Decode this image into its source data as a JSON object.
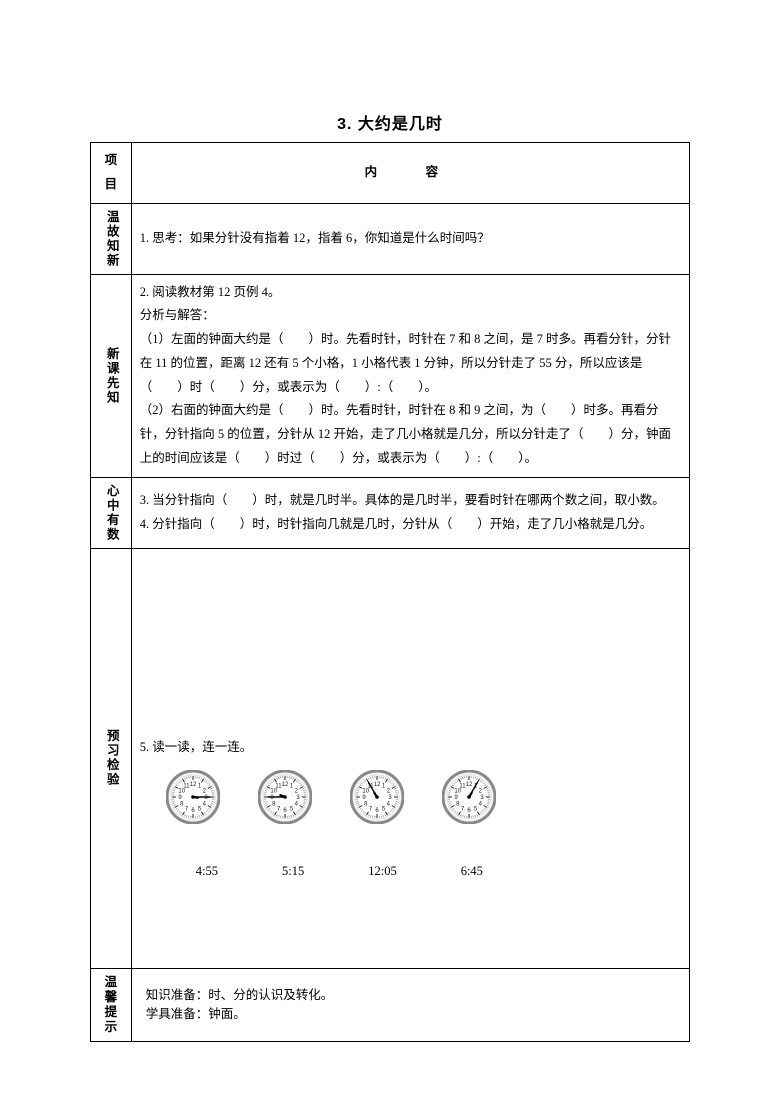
{
  "title": "3. 大约是几时",
  "header": {
    "col1": "项目",
    "col2": "内　容"
  },
  "rows": {
    "r1": {
      "label": "温故知新",
      "text": "1. 思考：如果分针没有指着 12，指着 6，你知道是什么时间吗？"
    },
    "r2": {
      "label": "新课先知",
      "l1": "2. 阅读教材第 12 页例 4。",
      "l2": "分析与解答：",
      "l3": "（1）左面的钟面大约是（　　）时。先看时针，时针在 7 和 8 之间，是 7 时多。再看分针，分针在 11 的位置，距离 12 还有 5 个小格，1 小格代表 1 分钟，所以分针走了 55 分，所以应该是（　　）时（　　）分，或表示为（　　）:（　　）。",
      "l4": "（2）右面的钟面大约是（　　）时。先看时针，时针在 8 和 9 之间，为（　　）时多。再看分针，分针指向 5 的位置，分针从 12 开始，走了几小格就是几分，所以分针走了（　　）分，钟面上的时间应该是（　　）时过（　　）分，或表示为（　　）:（　　）。"
    },
    "r3": {
      "label": "心中有数",
      "l1": "3. 当分针指向（　　）时，就是几时半。具体的是几时半，要看时针在哪两个数之间，取小数。",
      "l2": "4. 分针指向（　　）时，时针指向几就是几时，分针从（　　）开始，走了几小格就是几分。"
    },
    "r4": {
      "label": "预习检验",
      "prompt": "5. 读一读，连一连。",
      "clocks": [
        {
          "hour": 3,
          "minute": 15
        },
        {
          "hour": 9,
          "minute": 45
        },
        {
          "hour": 10,
          "minute": 55
        },
        {
          "hour": 1,
          "minute": 5
        }
      ],
      "times": [
        "4:55",
        "5:15",
        "12:05",
        "6:45"
      ]
    },
    "r5": {
      "label": "温馨提示",
      "l1": "知识准备：时、分的认识及转化。",
      "l2": "学具准备：钟面。"
    }
  },
  "style": {
    "clock_diameter": 54,
    "clock_face": "#f4f4f4",
    "clock_rim": "#888888",
    "clock_tick": "#222222",
    "clock_hand": "#000000",
    "clock_num_font": 6
  }
}
